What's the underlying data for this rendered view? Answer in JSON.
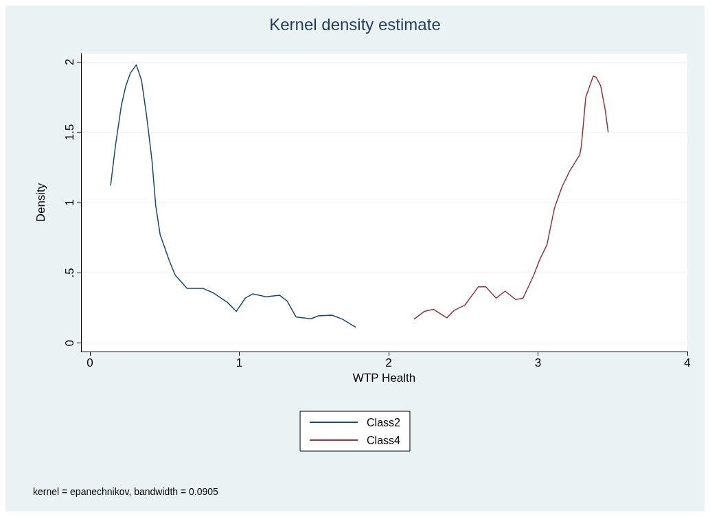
{
  "chart_data": {
    "type": "line",
    "title": "Kernel density estimate",
    "xlabel": "WTP Health",
    "ylabel": "Density",
    "xlim": [
      -0.06,
      4.0
    ],
    "ylim": [
      -0.06,
      2.06
    ],
    "xticks": [
      0,
      1,
      2,
      3,
      4
    ],
    "yticks": [
      0,
      {
        "value": 0.5,
        "label": ".5"
      },
      1,
      1.5,
      2
    ],
    "grid": "y",
    "legend": "bottom",
    "marker": "none",
    "line_style": "solid",
    "annotations": [
      "kernel = epanechnikov, bandwidth = 0.0905"
    ],
    "series": [
      {
        "name": "Class2",
        "color": "#1a476f",
        "x": [
          0.138,
          0.17,
          0.21,
          0.24,
          0.27,
          0.31,
          0.345,
          0.38,
          0.415,
          0.44,
          0.47,
          0.53,
          0.57,
          0.65,
          0.755,
          0.83,
          0.92,
          0.98,
          1.04,
          1.09,
          1.18,
          1.27,
          1.32,
          1.38,
          1.48,
          1.53,
          1.62,
          1.69,
          1.78
        ],
        "values": [
          1.12,
          1.4,
          1.69,
          1.83,
          1.92,
          1.98,
          1.87,
          1.61,
          1.3,
          0.98,
          0.77,
          0.59,
          0.485,
          0.39,
          0.39,
          0.355,
          0.29,
          0.226,
          0.32,
          0.35,
          0.33,
          0.34,
          0.3,
          0.186,
          0.173,
          0.194,
          0.199,
          0.17,
          0.113
        ]
      },
      {
        "name": "Class4",
        "color": "#90353b",
        "x": [
          2.17,
          2.24,
          2.3,
          2.39,
          2.44,
          2.51,
          2.6,
          2.65,
          2.72,
          2.78,
          2.85,
          2.9,
          2.97,
          3.01,
          3.06,
          3.11,
          3.16,
          3.21,
          3.28,
          3.29,
          3.32,
          3.37,
          3.39,
          3.42,
          3.45,
          3.47
        ],
        "values": [
          0.17,
          0.226,
          0.24,
          0.18,
          0.234,
          0.27,
          0.4,
          0.4,
          0.32,
          0.37,
          0.31,
          0.32,
          0.48,
          0.59,
          0.7,
          0.96,
          1.11,
          1.22,
          1.34,
          1.4,
          1.75,
          1.9,
          1.89,
          1.83,
          1.66,
          1.5
        ]
      }
    ]
  }
}
